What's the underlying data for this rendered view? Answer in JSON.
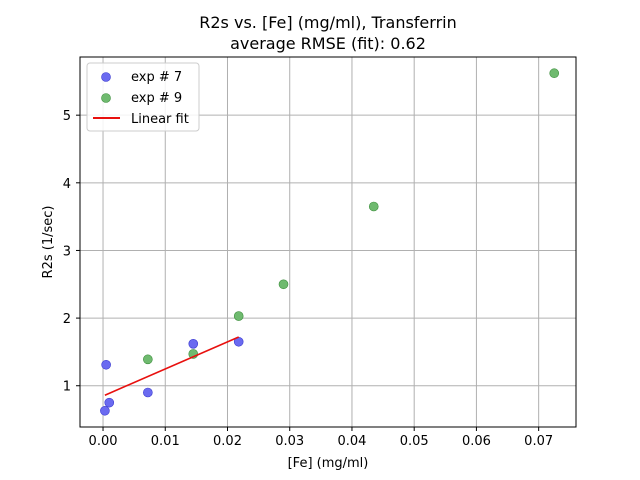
{
  "chart_data": {
    "type": "scatter",
    "title": "R2s vs. [Fe] (mg/ml), Transferrin",
    "subtitle": "average RMSE (fit): 0.62",
    "xlabel": "[Fe] (mg/ml)",
    "ylabel": "R2s (1/sec)",
    "xlim": [
      -0.0037,
      0.076
    ],
    "ylim": [
      0.39,
      5.86
    ],
    "xticks": [
      0.0,
      0.01,
      0.02,
      0.03,
      0.04,
      0.05,
      0.06,
      0.07
    ],
    "xtick_labels": [
      "0.00",
      "0.01",
      "0.02",
      "0.03",
      "0.04",
      "0.05",
      "0.06",
      "0.07"
    ],
    "yticks": [
      1,
      2,
      3,
      4,
      5
    ],
    "ytick_labels": [
      "1",
      "2",
      "3",
      "4",
      "5"
    ],
    "grid": true,
    "legend_position": "top-left",
    "series": [
      {
        "name": "exp # 7",
        "kind": "scatter",
        "color": "#6a6af0",
        "edge": "#3b3bd0",
        "points": [
          {
            "x": 0.0003,
            "y": 0.63
          },
          {
            "x": 0.0005,
            "y": 1.31
          },
          {
            "x": 0.001,
            "y": 0.75
          },
          {
            "x": 0.0072,
            "y": 0.9
          },
          {
            "x": 0.0145,
            "y": 1.62
          },
          {
            "x": 0.0218,
            "y": 1.65
          }
        ]
      },
      {
        "name": "exp # 9",
        "kind": "scatter",
        "color": "#6fba6f",
        "edge": "#3d8f3d",
        "points": [
          {
            "x": 0.0072,
            "y": 1.39
          },
          {
            "x": 0.0145,
            "y": 1.47
          },
          {
            "x": 0.0218,
            "y": 2.03
          },
          {
            "x": 0.029,
            "y": 2.5
          },
          {
            "x": 0.0435,
            "y": 3.65
          },
          {
            "x": 0.0725,
            "y": 5.62
          }
        ]
      },
      {
        "name": "Linear fit",
        "kind": "line",
        "color": "#e8100e",
        "points": [
          {
            "x": 0.0003,
            "y": 0.86
          },
          {
            "x": 0.0218,
            "y": 1.72
          }
        ]
      }
    ]
  }
}
